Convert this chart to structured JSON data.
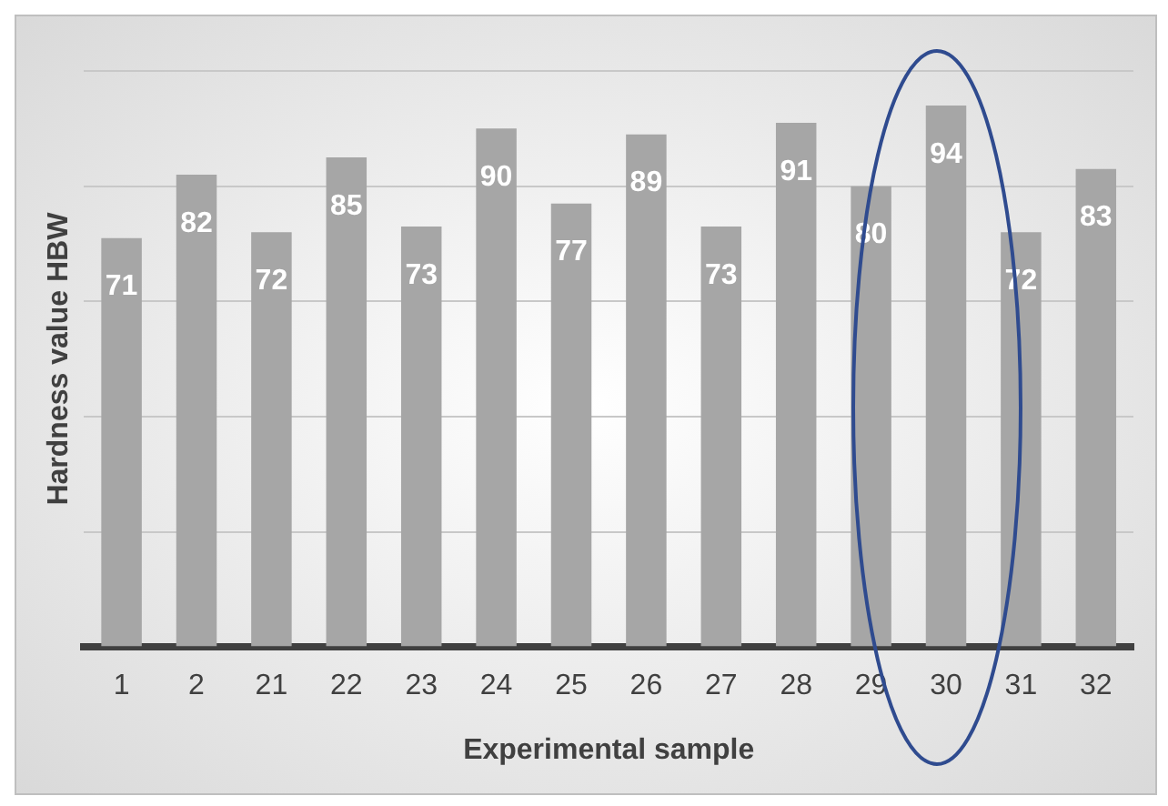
{
  "chart_data": {
    "type": "bar",
    "xlabel": "Experimental sample",
    "ylabel": "Hardness value HBW",
    "categories": [
      "1",
      "2",
      "21",
      "22",
      "23",
      "24",
      "25",
      "26",
      "27",
      "28",
      "29",
      "30",
      "31",
      "32"
    ],
    "values": [
      71,
      82,
      72,
      85,
      73,
      90,
      77,
      89,
      73,
      91,
      80,
      94,
      72,
      83
    ],
    "color": "#a6a6a6",
    "ylim": [
      0,
      100
    ],
    "yticks": [
      {
        "value": 0,
        "label": null
      },
      {
        "value": 20,
        "label": null
      },
      {
        "value": 40,
        "label": null
      },
      {
        "value": 60,
        "label": null
      },
      {
        "value": 80,
        "label": null
      },
      {
        "value": 100,
        "label": null
      }
    ],
    "tick_labels": "x",
    "grid": "y",
    "data_labels": true,
    "legend": false
  }
}
